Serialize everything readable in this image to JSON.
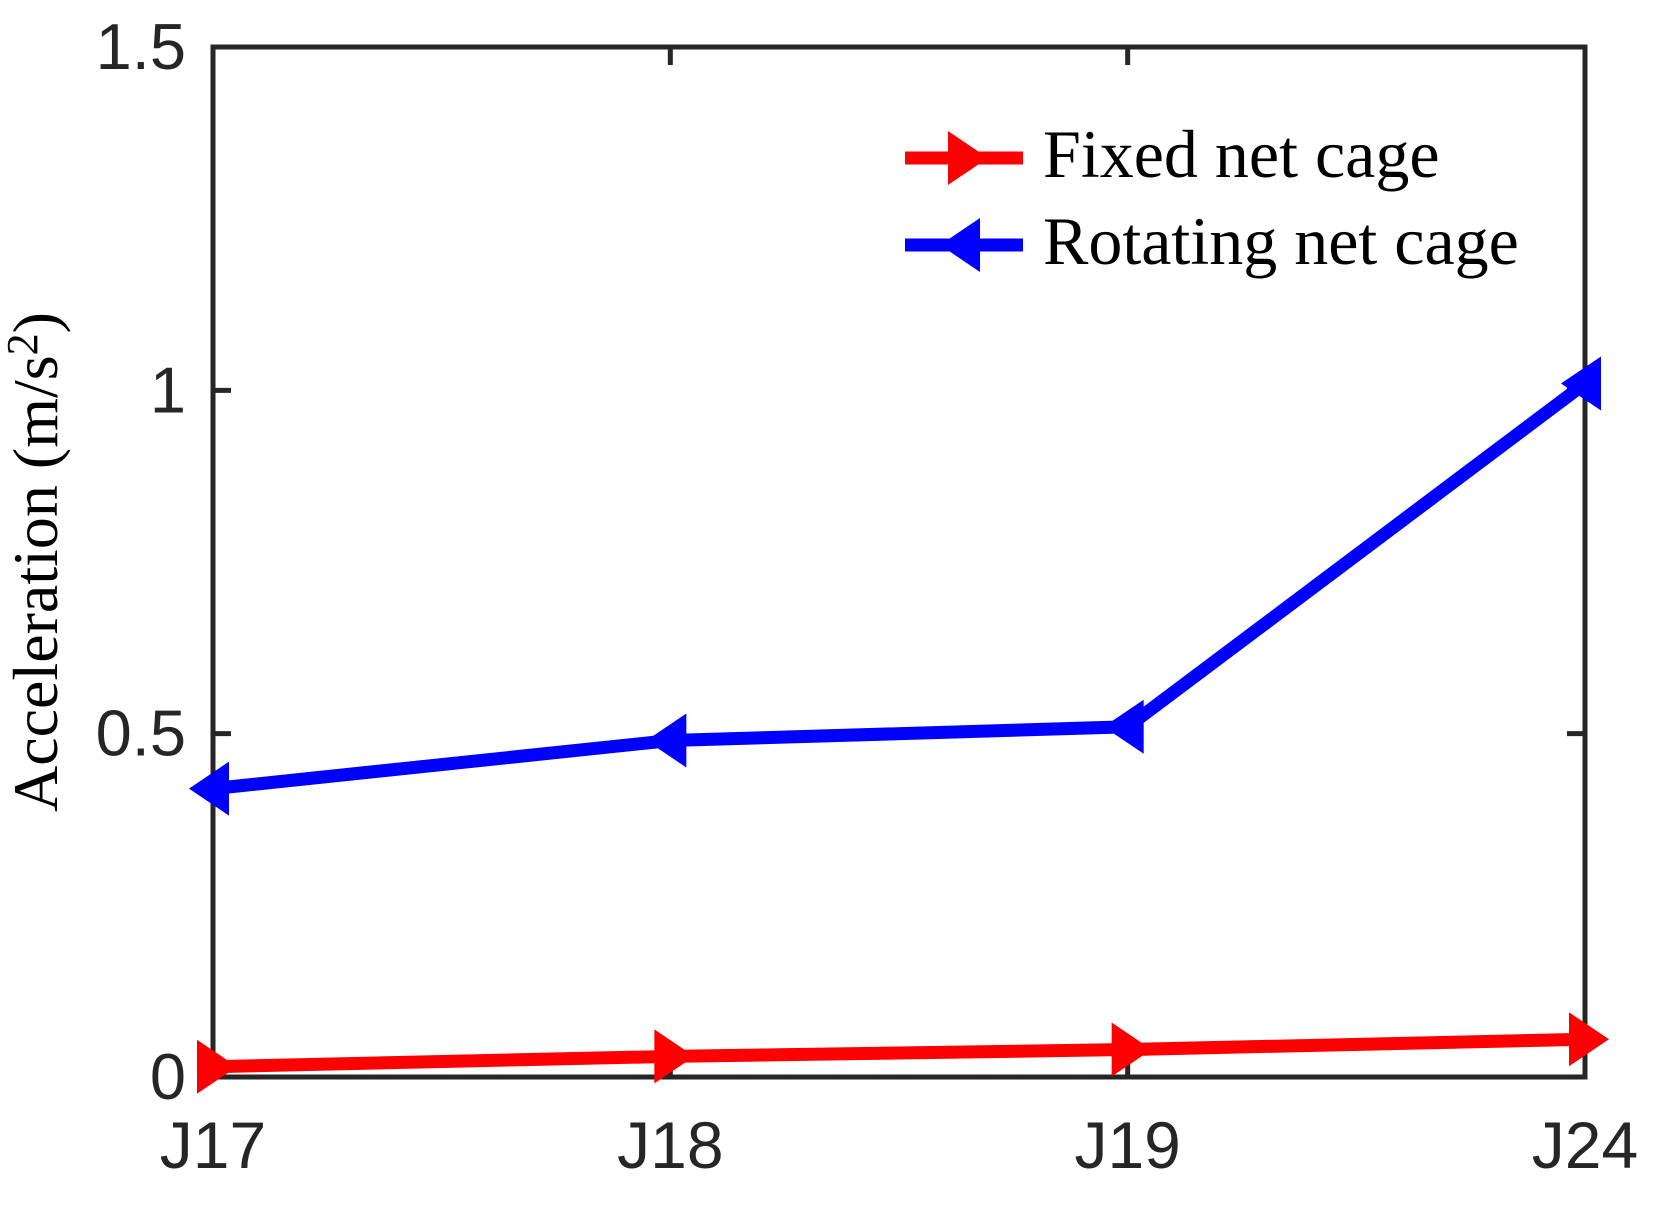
{
  "page": {
    "background": "#ffffff"
  },
  "chart_data": {
    "type": "line",
    "title": "",
    "xlabel": "",
    "ylabel": "Acceleration (m/s²)",
    "categories": [
      "J17",
      "J18",
      "J19",
      "J24"
    ],
    "series": [
      {
        "name": "Fixed net cage",
        "color": "#ff0000",
        "marker": "triangle-right",
        "values": [
          0.015,
          0.03,
          0.04,
          0.055
        ]
      },
      {
        "name": "Rotating net cage",
        "color": "#0000ff",
        "marker": "triangle-left",
        "values": [
          0.42,
          0.49,
          0.51,
          1.01
        ]
      }
    ],
    "ylim": [
      0,
      1.5
    ],
    "y_ticks": [
      0,
      0.5,
      1,
      1.5
    ],
    "y_tick_labels": [
      "0",
      "0.5",
      "1",
      "1.5"
    ],
    "grid": false,
    "legend": {
      "position": "top-right-inside",
      "frame": false
    },
    "axis_color": "#262626",
    "text_color": "#000000"
  }
}
